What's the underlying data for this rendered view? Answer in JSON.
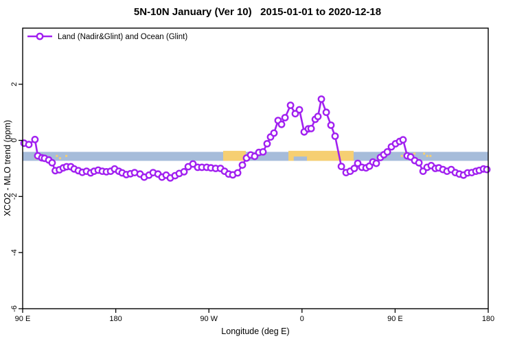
{
  "title": "5N-10N January (Ver 10)   2015-01-01 to 2020-12-18",
  "colors": {
    "line": "#A120F0",
    "ocean_band": "#A6BCDA",
    "land_patch": "#F6CF72",
    "axis": "#000000",
    "background": "#FFFFFF"
  },
  "chart_data": {
    "type": "line",
    "title": "5N-10N January (Ver 10)   2015-01-01 to 2020-12-18",
    "xlabel": "Longitude (deg E)",
    "ylabel": "XCO2 - MLO trend (ppm)",
    "grid": false,
    "x_axis": {
      "min": 90,
      "max": 540,
      "tick_values": [
        90,
        180,
        270,
        360,
        450,
        540
      ],
      "tick_labels": [
        "90 E",
        "180",
        "90 W",
        "0",
        "90 E",
        "180"
      ],
      "note": "longitude wraps: 90E to 180 then 90W, 0, 90E, 180"
    },
    "y_axis": {
      "min": -6,
      "max": 4,
      "tick_values": [
        2,
        0,
        -2,
        -4,
        -6
      ],
      "tick_labels": [
        "2",
        "0",
        "-2",
        "-4",
        "-6"
      ]
    },
    "legend": {
      "position": "top-left",
      "entries": [
        {
          "label": "Land (Nadir&Glint) and Ocean (Glint)",
          "color": "#A120F0",
          "marker": "open-circle"
        }
      ]
    },
    "map_band": {
      "name": "latitude-strip-map",
      "value_top": -0.41,
      "value_bottom": -0.73,
      "ocean_color": "#A6BCDA",
      "land_color": "#F6CF72",
      "land_segments": [
        {
          "from": 98.5,
          "to": 108,
          "style": "speckled"
        },
        {
          "from": 119,
          "to": 132.5,
          "style": "speckled"
        },
        {
          "from": 283.8,
          "to": 305.7,
          "style": "solid"
        },
        {
          "from": 346.9,
          "to": 409.9,
          "style": "solid"
        },
        {
          "from": 455.5,
          "to": 469,
          "style": "speckled"
        },
        {
          "from": 477,
          "to": 489,
          "style": "speckled"
        }
      ],
      "coast_notch": {
        "from": 352,
        "to": 364.8
      }
    },
    "series": [
      {
        "name": "Land (Nadir&Glint) and Ocean (Glint)",
        "color": "#A120F0",
        "marker": "open-circle",
        "points": [
          [
            91.3,
            -0.1
          ],
          [
            96.0,
            -0.15
          ],
          [
            101.9,
            0.03
          ],
          [
            104.6,
            -0.55
          ],
          [
            108.6,
            -0.62
          ],
          [
            111.2,
            -0.64
          ],
          [
            115.2,
            -0.7
          ],
          [
            118.5,
            -0.8
          ],
          [
            121.5,
            -1.08
          ],
          [
            125.5,
            -1.05
          ],
          [
            129.2,
            -0.98
          ],
          [
            132.5,
            -0.94
          ],
          [
            136.5,
            -0.94
          ],
          [
            139.8,
            -1.02
          ],
          [
            143.8,
            -1.08
          ],
          [
            147.7,
            -1.14
          ],
          [
            151.7,
            -1.1
          ],
          [
            155.7,
            -1.16
          ],
          [
            159.0,
            -1.1
          ],
          [
            163.0,
            -1.06
          ],
          [
            167.0,
            -1.1
          ],
          [
            171.0,
            -1.12
          ],
          [
            175.0,
            -1.1
          ],
          [
            178.9,
            -1.02
          ],
          [
            182.9,
            -1.1
          ],
          [
            186.2,
            -1.16
          ],
          [
            190.2,
            -1.22
          ],
          [
            194.2,
            -1.19
          ],
          [
            198.2,
            -1.15
          ],
          [
            203.5,
            -1.2
          ],
          [
            207.5,
            -1.31
          ],
          [
            212.1,
            -1.24
          ],
          [
            216.1,
            -1.15
          ],
          [
            220.8,
            -1.2
          ],
          [
            224.7,
            -1.31
          ],
          [
            228.7,
            -1.24
          ],
          [
            232.7,
            -1.34
          ],
          [
            237.3,
            -1.26
          ],
          [
            241.3,
            -1.18
          ],
          [
            246.0,
            -1.12
          ],
          [
            250.0,
            -0.94
          ],
          [
            254.6,
            -0.84
          ],
          [
            259.2,
            -0.96
          ],
          [
            263.2,
            -0.96
          ],
          [
            267.9,
            -0.96
          ],
          [
            271.9,
            -0.98
          ],
          [
            276.5,
            -1.0
          ],
          [
            281.2,
            -1.0
          ],
          [
            285.1,
            -1.1
          ],
          [
            289.1,
            -1.2
          ],
          [
            293.1,
            -1.23
          ],
          [
            297.8,
            -1.16
          ],
          [
            302.4,
            -0.88
          ],
          [
            306.4,
            -0.63
          ],
          [
            310.4,
            -0.52
          ],
          [
            314.3,
            -0.57
          ],
          [
            318.3,
            -0.43
          ],
          [
            322.3,
            -0.41
          ],
          [
            326.3,
            -0.12
          ],
          [
            329.6,
            0.12
          ],
          [
            332.9,
            0.26
          ],
          [
            336.9,
            0.71
          ],
          [
            340.2,
            0.57
          ],
          [
            343.6,
            0.81
          ],
          [
            348.9,
            1.25
          ],
          [
            353.5,
            0.95
          ],
          [
            357.5,
            1.09
          ],
          [
            362.1,
            0.3
          ],
          [
            366.1,
            0.41
          ],
          [
            368.8,
            0.42
          ],
          [
            372.8,
            0.75
          ],
          [
            375.4,
            0.85
          ],
          [
            378.7,
            1.47
          ],
          [
            383.4,
            1.0
          ],
          [
            388.0,
            0.54
          ],
          [
            392.0,
            0.15
          ],
          [
            398.0,
            -0.93
          ],
          [
            402.6,
            -1.15
          ],
          [
            406.6,
            -1.1
          ],
          [
            410.6,
            -1.0
          ],
          [
            413.9,
            -0.82
          ],
          [
            417.9,
            -0.96
          ],
          [
            421.9,
            -0.98
          ],
          [
            425.2,
            -0.92
          ],
          [
            428.5,
            -0.77
          ],
          [
            431.8,
            -0.82
          ],
          [
            435.8,
            -0.61
          ],
          [
            439.1,
            -0.51
          ],
          [
            442.5,
            -0.41
          ],
          [
            446.4,
            -0.23
          ],
          [
            450.4,
            -0.12
          ],
          [
            454.4,
            -0.04
          ],
          [
            457.7,
            0.02
          ],
          [
            461.7,
            -0.55
          ],
          [
            465.0,
            -0.59
          ],
          [
            469.0,
            -0.72
          ],
          [
            473.0,
            -0.8
          ],
          [
            477.0,
            -1.1
          ],
          [
            480.9,
            -0.96
          ],
          [
            484.9,
            -0.9
          ],
          [
            488.9,
            -1.0
          ],
          [
            492.2,
            -0.98
          ],
          [
            496.2,
            -1.04
          ],
          [
            500.2,
            -1.1
          ],
          [
            504.2,
            -1.04
          ],
          [
            508.2,
            -1.15
          ],
          [
            512.1,
            -1.2
          ],
          [
            516.1,
            -1.24
          ],
          [
            520.1,
            -1.16
          ],
          [
            524.1,
            -1.15
          ],
          [
            528.1,
            -1.1
          ],
          [
            531.4,
            -1.07
          ],
          [
            535.4,
            -1.02
          ],
          [
            538.7,
            -1.04
          ]
        ]
      }
    ]
  }
}
